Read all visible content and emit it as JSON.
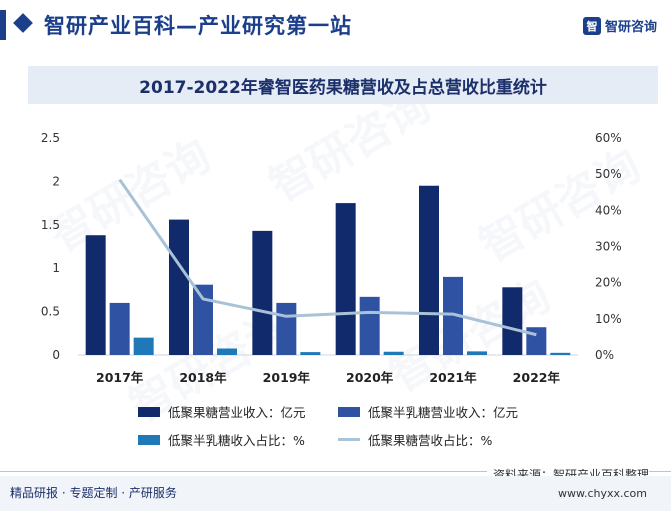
{
  "header": {
    "title": "智研产业百科—产业研究第一站",
    "brand": "智研咨询",
    "brand_logo_text": "智"
  },
  "watermark": "智研咨询",
  "chart_data": {
    "type": "bar",
    "title": "2017-2022年睿智医药果糖营收及占总营收比重统计",
    "categories": [
      "2017年",
      "2018年",
      "2019年",
      "2020年",
      "2021年",
      "2022年"
    ],
    "series": [
      {
        "name": "低聚果糖营业收入：亿元",
        "kind": "bar",
        "axis": "left",
        "color": "#112a6b",
        "values": [
          1.38,
          1.56,
          1.43,
          1.75,
          1.95,
          0.78
        ]
      },
      {
        "name": "低聚半乳糖营业收入：亿元",
        "kind": "bar",
        "axis": "left",
        "color": "#2f52a2",
        "values": [
          0.6,
          0.81,
          0.6,
          0.67,
          0.9,
          0.32
        ]
      },
      {
        "name": "低聚半乳糖收入占比：%",
        "kind": "bar",
        "axis": "right",
        "color": "#1f78b8",
        "values": [
          4.8,
          1.8,
          0.8,
          0.9,
          1.0,
          0.6
        ]
      },
      {
        "name": "低聚果糖营收占比：%",
        "kind": "line",
        "axis": "right",
        "color": "#a9c2d6",
        "values": [
          48.5,
          15.5,
          10.7,
          11.8,
          11.3,
          5.6
        ]
      }
    ],
    "y_left": {
      "ticks": [
        "0",
        "0.5",
        "1",
        "1.5",
        "2",
        "2.5"
      ],
      "range": [
        0,
        2.5
      ]
    },
    "y_right": {
      "ticks": [
        "0%",
        "10%",
        "20%",
        "30%",
        "40%",
        "50%",
        "60%"
      ],
      "range": [
        0,
        60
      ]
    },
    "grid": false,
    "legend_position": "bottom"
  },
  "footer": {
    "left": "精品研报 · 专题定制 · 产研服务",
    "source": "资料来源：智研产业百科整理",
    "url": "www.chyxx.com"
  }
}
